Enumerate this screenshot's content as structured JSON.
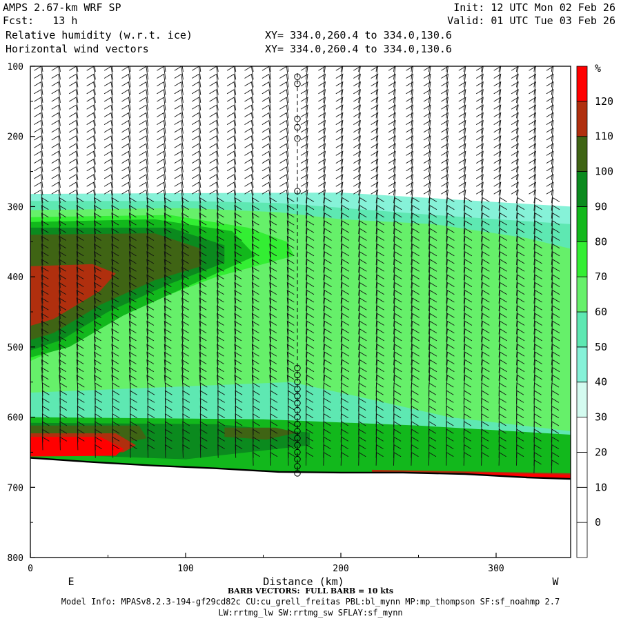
{
  "header": {
    "model": "AMPS 2.67-km WRF SP",
    "init": "Init: 12 UTC Mon 02 Feb 26",
    "fcst": "Fcst:   13 h",
    "valid": "Valid: 01 UTC Tue 03 Feb 26",
    "field1": "Relative humidity (w.r.t. ice)",
    "field2": "Horizontal wind vectors",
    "xy1": "XY= 334.0,260.4 to 334.0,130.6",
    "xy2": "XY= 334.0,260.4 to 334.0,130.6"
  },
  "footer": {
    "barb": "BARB VECTORS:  FULL BARB = 10 kts",
    "model_info": "Model Info: MPASv8.2.3-194-gf29cd82c CU:cu_grell_freitas PBL:bl_mynn MP:mp_thompson SF:sf_noahmp 2.7",
    "model_info2": "LW:rrtmg_lw SW:rrtmg_sw SFLAY:sf_mynn"
  },
  "chart_data": {
    "type": "heatmap",
    "xlabel": "Distance (km)",
    "ylabel": "",
    "x_ticks": [
      0,
      100,
      200,
      300
    ],
    "y_ticks": [
      100,
      200,
      300,
      400,
      500,
      600,
      700,
      800
    ],
    "xlim": [
      0,
      348
    ],
    "ylim": [
      800,
      100
    ],
    "x_end_labels": {
      "left": "E",
      "right": "W"
    },
    "colorbar": {
      "unit": "%",
      "levels": [
        0,
        10,
        20,
        30,
        40,
        50,
        60,
        70,
        80,
        90,
        100,
        110,
        120
      ],
      "colors": [
        "#ffffff",
        "#ffffff",
        "#ffffff",
        "#ffffff",
        "#d4fbf0",
        "#86f2d8",
        "#5ee8b2",
        "#66f06a",
        "#33ee33",
        "#12b81c",
        "#0b8a1e",
        "#3f6414",
        "#b02f0e",
        "#ff0000"
      ]
    },
    "terrain": [
      [
        0,
        658
      ],
      [
        40,
        664
      ],
      [
        80,
        669
      ],
      [
        120,
        673
      ],
      [
        160,
        678
      ],
      [
        200,
        679
      ],
      [
        240,
        679
      ],
      [
        280,
        681
      ],
      [
        320,
        686
      ],
      [
        348,
        688
      ]
    ],
    "regions": [
      {
        "rh": 40,
        "points": [
          [
            0,
            282
          ],
          [
            80,
            281
          ],
          [
            200,
            280
          ],
          [
            348,
            300
          ],
          [
            348,
            690
          ],
          [
            0,
            690
          ]
        ]
      },
      {
        "rh": 50,
        "points": [
          [
            0,
            292
          ],
          [
            100,
            292
          ],
          [
            160,
            295
          ],
          [
            190,
            300
          ],
          [
            260,
            312
          ],
          [
            348,
            325
          ],
          [
            348,
            660
          ],
          [
            250,
            650
          ],
          [
            170,
            640
          ],
          [
            0,
            650
          ]
        ]
      },
      {
        "rh": 40,
        "points": [
          [
            150,
            395
          ],
          [
            220,
            410
          ],
          [
            290,
            440
          ],
          [
            348,
            460
          ],
          [
            348,
            540
          ],
          [
            290,
            560
          ],
          [
            210,
            565
          ],
          [
            180,
            545
          ],
          [
            170,
            500
          ],
          [
            160,
            440
          ]
        ]
      },
      {
        "rh": 30,
        "points": [
          [
            185,
            478
          ],
          [
            220,
            468
          ],
          [
            270,
            456
          ],
          [
            295,
            460
          ],
          [
            293,
            490
          ],
          [
            270,
            525
          ],
          [
            220,
            540
          ],
          [
            190,
            548
          ],
          [
            178,
            530
          ],
          [
            180,
            500
          ]
        ]
      },
      {
        "rh": 60,
        "points": [
          [
            0,
            305
          ],
          [
            100,
            302
          ],
          [
            160,
            308
          ],
          [
            200,
            318
          ],
          [
            260,
            325
          ],
          [
            320,
            345
          ],
          [
            348,
            360
          ],
          [
            348,
            620
          ],
          [
            270,
            600
          ],
          [
            210,
            570
          ],
          [
            168,
            550
          ],
          [
            0,
            565
          ]
        ]
      },
      {
        "rh": 70,
        "points": [
          [
            0,
            315
          ],
          [
            90,
            312
          ],
          [
            140,
            330
          ],
          [
            165,
            350
          ],
          [
            170,
            370
          ],
          [
            120,
            400
          ],
          [
            60,
            450
          ],
          [
            20,
            500
          ],
          [
            0,
            520
          ]
        ]
      },
      {
        "rh": 80,
        "points": [
          [
            0,
            322
          ],
          [
            80,
            318
          ],
          [
            130,
            335
          ],
          [
            145,
            370
          ],
          [
            110,
            405
          ],
          [
            60,
            455
          ],
          [
            25,
            500
          ],
          [
            0,
            515
          ]
        ]
      },
      {
        "rh": 90,
        "points": [
          [
            0,
            330
          ],
          [
            90,
            330
          ],
          [
            125,
            355
          ],
          [
            125,
            380
          ],
          [
            90,
            410
          ],
          [
            50,
            450
          ],
          [
            20,
            490
          ],
          [
            0,
            505
          ]
        ]
      },
      {
        "rh": 100,
        "points": [
          [
            0,
            340
          ],
          [
            80,
            338
          ],
          [
            110,
            360
          ],
          [
            110,
            385
          ],
          [
            80,
            405
          ],
          [
            45,
            440
          ],
          [
            15,
            480
          ],
          [
            0,
            490
          ]
        ]
      },
      {
        "rh": 110,
        "points": [
          [
            0,
            385
          ],
          [
            40,
            382
          ],
          [
            55,
            395
          ],
          [
            45,
            420
          ],
          [
            15,
            460
          ],
          [
            0,
            470
          ]
        ]
      },
      {
        "rh": 80,
        "points": [
          [
            0,
            600
          ],
          [
            150,
            603
          ],
          [
            250,
            612
          ],
          [
            348,
            625
          ],
          [
            348,
            688
          ],
          [
            160,
            679
          ],
          [
            0,
            658
          ]
        ]
      },
      {
        "rh": 90,
        "points": [
          [
            0,
            608
          ],
          [
            120,
            610
          ],
          [
            180,
            622
          ],
          [
            180,
            640
          ],
          [
            100,
            660
          ],
          [
            0,
            652
          ]
        ]
      },
      {
        "rh": 100,
        "points": [
          [
            0,
            612
          ],
          [
            70,
            612
          ],
          [
            75,
            630
          ],
          [
            40,
            645
          ],
          [
            0,
            645
          ]
        ]
      },
      {
        "rh": 100,
        "points": [
          [
            125,
            615
          ],
          [
            158,
            615
          ],
          [
            172,
            622
          ],
          [
            152,
            632
          ],
          [
            125,
            628
          ]
        ]
      },
      {
        "rh": 110,
        "points": [
          [
            0,
            623
          ],
          [
            55,
            623
          ],
          [
            68,
            640
          ],
          [
            60,
            650
          ],
          [
            0,
            652
          ]
        ]
      },
      {
        "rh": 120,
        "points": [
          [
            0,
            628
          ],
          [
            45,
            628
          ],
          [
            60,
            645
          ],
          [
            55,
            655
          ],
          [
            0,
            656
          ]
        ]
      },
      {
        "rh": 110,
        "points": [
          [
            220,
            675
          ],
          [
            348,
            680
          ],
          [
            348,
            689
          ],
          [
            220,
            680
          ]
        ]
      },
      {
        "rh": 120,
        "points": [
          [
            280,
            679
          ],
          [
            348,
            682
          ],
          [
            348,
            690
          ],
          [
            280,
            684
          ]
        ]
      }
    ],
    "calm_column": {
      "x": 172,
      "levels_top": [
        115,
        125,
        175,
        187,
        203,
        278
      ],
      "levels_bottom_range": [
        530,
        680
      ]
    }
  }
}
